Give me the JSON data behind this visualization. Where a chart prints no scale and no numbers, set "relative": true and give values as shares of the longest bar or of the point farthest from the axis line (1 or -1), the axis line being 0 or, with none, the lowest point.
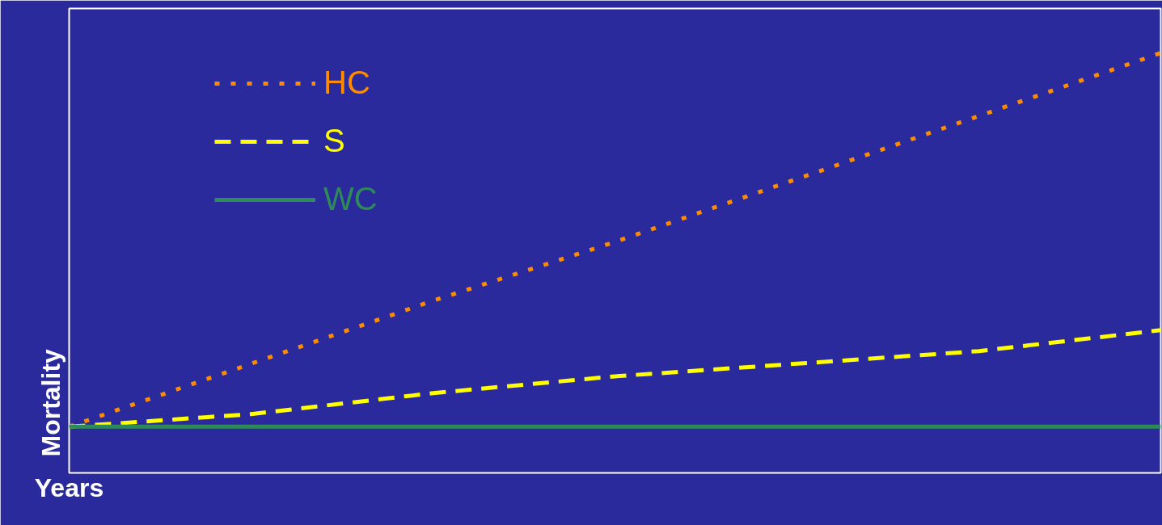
{
  "chart_data": {
    "type": "line",
    "relative": true,
    "xlabel": "Years",
    "ylabel": "Mortality",
    "legend": "top left",
    "categories": [
      null,
      null,
      null,
      null,
      null,
      null,
      null
    ],
    "series": [
      {
        "name": "HC",
        "color": "#ff8c00",
        "line_style": "dotted",
        "values": [
          0.11,
          0.26,
          0.41,
          0.55,
          0.7,
          0.85,
          1
        ]
      },
      {
        "name": "S",
        "color": "#ffff00",
        "line_style": "dashed",
        "values": [
          0.11,
          0.14,
          0.19,
          0.23,
          0.26,
          0.29,
          0.34
        ]
      },
      {
        "name": "WC",
        "color": "#2e8b57",
        "line_style": "solid",
        "values": [
          0.11,
          0.11,
          0.11,
          0.11,
          0.11,
          0.11,
          0.11
        ]
      }
    ]
  }
}
